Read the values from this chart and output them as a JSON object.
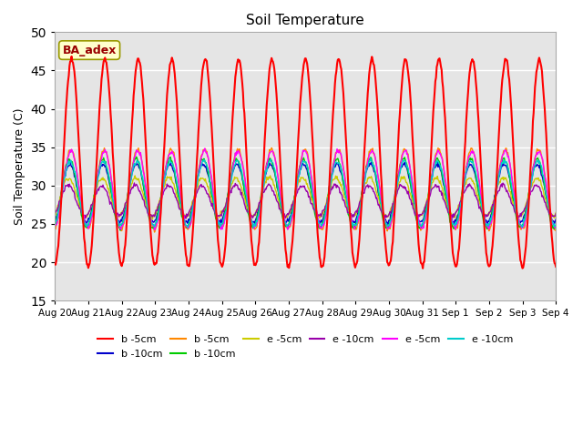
{
  "title": "Soil Temperature",
  "ylabel": "Soil Temperature (C)",
  "ylim": [
    15,
    50
  ],
  "yticks": [
    15,
    20,
    25,
    30,
    35,
    40,
    45,
    50
  ],
  "x_labels": [
    "Aug 20",
    "Aug 21",
    "Aug 22",
    "Aug 23",
    "Aug 24",
    "Aug 25",
    "Aug 26",
    "Aug 27",
    "Aug 28",
    "Aug 29",
    "Aug 30",
    "Aug 31",
    "Sep 1",
    "Sep 2",
    "Sep 3",
    "Sep 4"
  ],
  "annotation": "BA_adex",
  "background_color": "#e5e5e5",
  "series": [
    {
      "label": "b -5cm",
      "color": "#ff0000",
      "mean": 33.0,
      "amp": 13.5,
      "phase": 0.0
    },
    {
      "label": "b -10cm",
      "color": "#0000cc",
      "mean": 29.0,
      "amp": 3.8,
      "phase": 0.35
    },
    {
      "label": "b -5cm",
      "color": "#ff8800",
      "mean": 29.5,
      "amp": 5.2,
      "phase": 0.12
    },
    {
      "label": "b -10cm",
      "color": "#00cc00",
      "mean": 29.0,
      "amp": 4.5,
      "phase": 0.38
    },
    {
      "label": "e -5cm",
      "color": "#cccc00",
      "mean": 28.5,
      "amp": 2.5,
      "phase": 0.5
    },
    {
      "label": "e -10cm",
      "color": "#9900aa",
      "mean": 28.0,
      "amp": 2.0,
      "phase": 0.6
    },
    {
      "label": "e -5cm",
      "color": "#ff00ff",
      "mean": 29.5,
      "amp": 5.0,
      "phase": 0.1
    },
    {
      "label": "e -10cm",
      "color": "#00cccc",
      "mean": 29.0,
      "amp": 4.2,
      "phase": 0.25
    }
  ],
  "n_days": 15,
  "points_per_day": 48,
  "figsize": [
    6.4,
    4.8
  ],
  "dpi": 100
}
